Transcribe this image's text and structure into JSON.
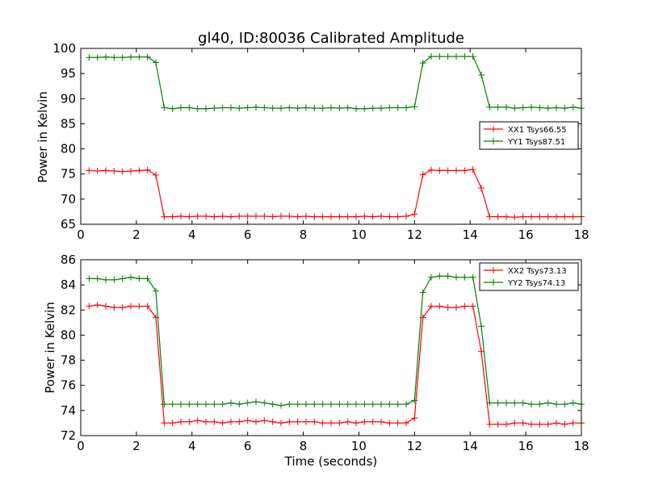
{
  "chart_data": [
    {
      "type": "line",
      "title": "gl40, ID:80036 Calibrated Amplitude",
      "xlabel": "",
      "ylabel": "Power in Kelvin",
      "xlim": [
        0,
        18
      ],
      "ylim": [
        65,
        100
      ],
      "xticks": [
        0,
        2,
        4,
        6,
        8,
        10,
        12,
        14,
        16,
        18
      ],
      "yticks": [
        65,
        70,
        75,
        80,
        85,
        90,
        95,
        100
      ],
      "legend_position": "center-right",
      "x": [
        0.3,
        0.6,
        0.9,
        1.2,
        1.5,
        1.8,
        2.1,
        2.4,
        2.7,
        3.0,
        3.3,
        3.6,
        3.9,
        4.2,
        4.5,
        4.8,
        5.1,
        5.4,
        5.7,
        6.0,
        6.3,
        6.6,
        6.9,
        7.2,
        7.5,
        7.8,
        8.1,
        8.4,
        8.7,
        9.0,
        9.3,
        9.6,
        9.9,
        10.2,
        10.5,
        10.8,
        11.1,
        11.4,
        11.7,
        12.0,
        12.3,
        12.6,
        12.9,
        13.2,
        13.5,
        13.8,
        14.1,
        14.4,
        14.7,
        15.0,
        15.3,
        15.6,
        15.9,
        16.2,
        16.5,
        16.8,
        17.1,
        17.4,
        17.7,
        18.0
      ],
      "series": [
        {
          "name": "XX1 Tsys66.55",
          "color": "#ff0000",
          "values": [
            75.7,
            75.6,
            75.7,
            75.6,
            75.5,
            75.6,
            75.7,
            75.8,
            74.8,
            66.5,
            66.5,
            66.6,
            66.5,
            66.6,
            66.6,
            66.5,
            66.6,
            66.5,
            66.6,
            66.6,
            66.6,
            66.6,
            66.5,
            66.6,
            66.6,
            66.5,
            66.6,
            66.5,
            66.5,
            66.5,
            66.5,
            66.5,
            66.5,
            66.6,
            66.5,
            66.6,
            66.5,
            66.5,
            66.6,
            67.0,
            74.9,
            75.8,
            75.7,
            75.7,
            75.7,
            75.7,
            75.9,
            72.2,
            66.5,
            66.5,
            66.5,
            66.4,
            66.5,
            66.5,
            66.5,
            66.5,
            66.5,
            66.5,
            66.5,
            66.5
          ]
        },
        {
          "name": "YY1 Tsys87.51",
          "color": "#008000",
          "values": [
            98.2,
            98.2,
            98.3,
            98.2,
            98.2,
            98.3,
            98.3,
            98.3,
            97.2,
            88.2,
            88.0,
            88.2,
            88.2,
            88.0,
            88.0,
            88.1,
            88.2,
            88.2,
            88.1,
            88.2,
            88.3,
            88.2,
            88.1,
            88.1,
            88.2,
            88.1,
            88.2,
            88.1,
            88.1,
            88.2,
            88.1,
            88.2,
            88.0,
            88.0,
            88.1,
            88.1,
            88.2,
            88.2,
            88.2,
            88.4,
            97.1,
            98.4,
            98.4,
            98.4,
            98.4,
            98.4,
            98.4,
            94.7,
            88.3,
            88.3,
            88.3,
            88.1,
            88.2,
            88.3,
            88.2,
            88.1,
            88.2,
            88.1,
            88.3,
            88.1
          ]
        }
      ]
    },
    {
      "type": "line",
      "title": "",
      "xlabel": "Time (seconds)",
      "ylabel": "Power in Kelvin",
      "xlim": [
        0,
        18
      ],
      "ylim": [
        72,
        86
      ],
      "xticks": [
        0,
        2,
        4,
        6,
        8,
        10,
        12,
        14,
        16,
        18
      ],
      "yticks": [
        72,
        74,
        76,
        78,
        80,
        82,
        84,
        86
      ],
      "legend_position": "top-right",
      "x": [
        0.3,
        0.6,
        0.9,
        1.2,
        1.5,
        1.8,
        2.1,
        2.4,
        2.7,
        3.0,
        3.3,
        3.6,
        3.9,
        4.2,
        4.5,
        4.8,
        5.1,
        5.4,
        5.7,
        6.0,
        6.3,
        6.6,
        6.9,
        7.2,
        7.5,
        7.8,
        8.1,
        8.4,
        8.7,
        9.0,
        9.3,
        9.6,
        9.9,
        10.2,
        10.5,
        10.8,
        11.1,
        11.4,
        11.7,
        12.0,
        12.3,
        12.6,
        12.9,
        13.2,
        13.5,
        13.8,
        14.1,
        14.4,
        14.7,
        15.0,
        15.3,
        15.6,
        15.9,
        16.2,
        16.5,
        16.8,
        17.1,
        17.4,
        17.7,
        18.0
      ],
      "series": [
        {
          "name": "XX2 Tsys73.13",
          "color": "#ff0000",
          "values": [
            82.3,
            82.4,
            82.3,
            82.2,
            82.2,
            82.3,
            82.3,
            82.3,
            81.4,
            73.0,
            73.0,
            73.1,
            73.1,
            73.2,
            73.1,
            73.1,
            73.0,
            73.1,
            73.1,
            73.2,
            73.1,
            73.2,
            73.1,
            73.0,
            73.1,
            73.1,
            73.1,
            73.1,
            73.0,
            73.0,
            73.0,
            73.1,
            73.0,
            73.1,
            73.1,
            73.1,
            73.0,
            73.0,
            73.0,
            73.4,
            81.4,
            82.3,
            82.3,
            82.2,
            82.2,
            82.3,
            82.3,
            78.7,
            72.9,
            72.9,
            72.9,
            73.0,
            73.0,
            72.9,
            72.9,
            72.9,
            73.0,
            72.9,
            73.0,
            73.0
          ]
        },
        {
          "name": "YY2 Tsys74.13",
          "color": "#008000",
          "values": [
            84.5,
            84.5,
            84.4,
            84.4,
            84.5,
            84.6,
            84.5,
            84.5,
            83.5,
            74.5,
            74.5,
            74.5,
            74.5,
            74.5,
            74.5,
            74.5,
            74.5,
            74.6,
            74.5,
            74.6,
            74.7,
            74.6,
            74.5,
            74.4,
            74.5,
            74.5,
            74.5,
            74.5,
            74.5,
            74.5,
            74.5,
            74.5,
            74.5,
            74.5,
            74.5,
            74.5,
            74.5,
            74.5,
            74.5,
            74.8,
            83.4,
            84.6,
            84.7,
            84.7,
            84.6,
            84.6,
            84.6,
            80.7,
            74.6,
            74.6,
            74.6,
            74.6,
            74.6,
            74.5,
            74.5,
            74.6,
            74.5,
            74.5,
            74.6,
            74.5
          ]
        }
      ]
    }
  ]
}
